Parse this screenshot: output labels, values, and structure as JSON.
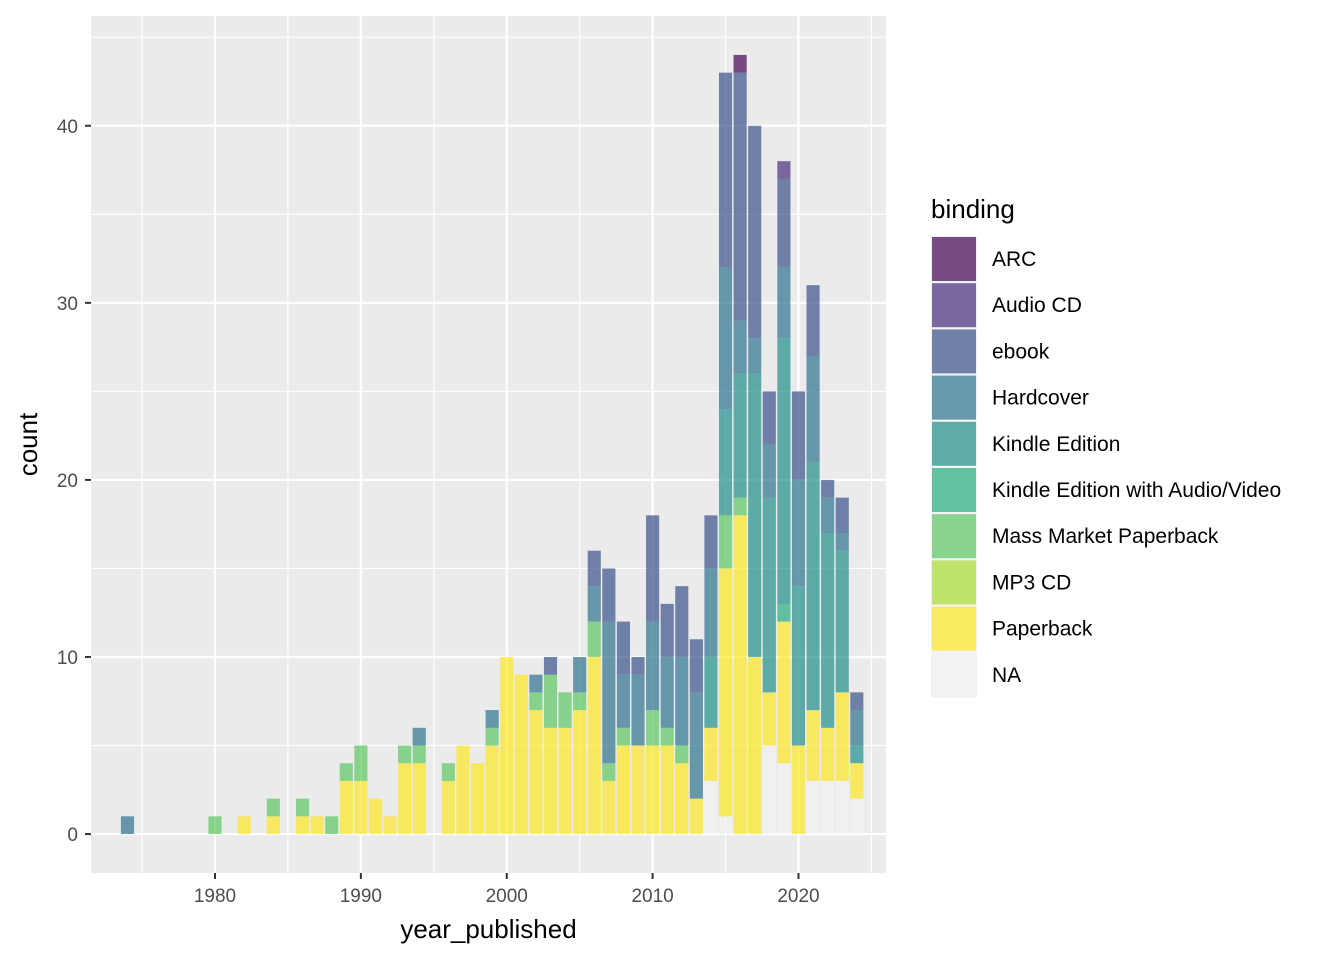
{
  "chart_data": {
    "type": "bar",
    "stacked": true,
    "title": "",
    "xlabel": "year_published",
    "ylabel": "count",
    "xlim": [
      1971.5,
      2026
    ],
    "ylim": [
      -2.2,
      46.2
    ],
    "xticks": [
      1980,
      1990,
      2000,
      2010,
      2020
    ],
    "yticks": [
      0,
      10,
      20,
      30,
      40
    ],
    "grid": true,
    "legend": {
      "title": "binding",
      "position": "right"
    },
    "series": [
      {
        "name": "ARC",
        "color": "#440154",
        "points": [
          [
            2016,
            1
          ]
        ]
      },
      {
        "name": "Audio CD",
        "color": "#472D7B",
        "points": [
          [
            2019,
            1
          ]
        ]
      },
      {
        "name": "ebook",
        "color": "#3B528B",
        "points": [
          [
            2003,
            1
          ],
          [
            2006,
            2
          ],
          [
            2007,
            3
          ],
          [
            2008,
            3
          ],
          [
            2009,
            1
          ],
          [
            2010,
            6
          ],
          [
            2011,
            3
          ],
          [
            2012,
            4
          ],
          [
            2013,
            3
          ],
          [
            2014,
            3
          ],
          [
            2015,
            11
          ],
          [
            2016,
            14
          ],
          [
            2017,
            12
          ],
          [
            2018,
            3
          ],
          [
            2019,
            5
          ],
          [
            2020,
            5
          ],
          [
            2021,
            4
          ],
          [
            2022,
            1
          ],
          [
            2023,
            2
          ],
          [
            2024,
            1
          ]
        ]
      },
      {
        "name": "Hardcover",
        "color": "#2C728E",
        "points": [
          [
            1974,
            1
          ],
          [
            1994,
            1
          ],
          [
            1999,
            1
          ],
          [
            2002,
            1
          ],
          [
            2005,
            2
          ],
          [
            2006,
            2
          ],
          [
            2007,
            8
          ],
          [
            2008,
            3
          ],
          [
            2009,
            4
          ],
          [
            2010,
            5
          ],
          [
            2011,
            4
          ],
          [
            2012,
            5
          ],
          [
            2013,
            6
          ],
          [
            2014,
            5
          ],
          [
            2015,
            8
          ],
          [
            2016,
            3
          ],
          [
            2017,
            2
          ],
          [
            2018,
            3
          ],
          [
            2019,
            4
          ],
          [
            2020,
            6
          ],
          [
            2021,
            6
          ],
          [
            2022,
            2
          ],
          [
            2023,
            1
          ],
          [
            2024,
            2
          ]
        ]
      },
      {
        "name": "Kindle Edition",
        "color": "#21908C",
        "points": [
          [
            2014,
            4
          ],
          [
            2015,
            6
          ],
          [
            2016,
            7
          ],
          [
            2017,
            16
          ],
          [
            2018,
            11
          ],
          [
            2019,
            15
          ],
          [
            2020,
            9
          ],
          [
            2021,
            14
          ],
          [
            2022,
            11
          ],
          [
            2023,
            8
          ],
          [
            2024,
            1
          ]
        ]
      },
      {
        "name": "Kindle Edition with Audio/Video",
        "color": "#27AD81",
        "points": [
          [
            2019,
            1
          ]
        ]
      },
      {
        "name": "Mass Market Paperback",
        "color": "#5DC863",
        "points": [
          [
            1980,
            1
          ],
          [
            1984,
            1
          ],
          [
            1986,
            1
          ],
          [
            1988,
            1
          ],
          [
            1989,
            1
          ],
          [
            1990,
            2
          ],
          [
            1993,
            1
          ],
          [
            1994,
            1
          ],
          [
            1996,
            1
          ],
          [
            1999,
            1
          ],
          [
            2002,
            1
          ],
          [
            2003,
            3
          ],
          [
            2004,
            2
          ],
          [
            2005,
            1
          ],
          [
            2006,
            2
          ],
          [
            2007,
            1
          ],
          [
            2008,
            1
          ],
          [
            2010,
            2
          ],
          [
            2011,
            1
          ],
          [
            2012,
            1
          ],
          [
            2015,
            3
          ],
          [
            2016,
            1
          ]
        ]
      },
      {
        "name": "MP3 CD",
        "color": "#AADC32",
        "points": []
      },
      {
        "name": "Paperback",
        "color": "#FDE725",
        "points": [
          [
            1982,
            1
          ],
          [
            1984,
            1
          ],
          [
            1986,
            1
          ],
          [
            1987,
            1
          ],
          [
            1989,
            3
          ],
          [
            1990,
            3
          ],
          [
            1991,
            2
          ],
          [
            1992,
            1
          ],
          [
            1993,
            4
          ],
          [
            1994,
            4
          ],
          [
            1996,
            3
          ],
          [
            1997,
            5
          ],
          [
            1998,
            4
          ],
          [
            1999,
            5
          ],
          [
            2000,
            10
          ],
          [
            2001,
            9
          ],
          [
            2002,
            7
          ],
          [
            2003,
            6
          ],
          [
            2004,
            6
          ],
          [
            2005,
            7
          ],
          [
            2006,
            10
          ],
          [
            2007,
            3
          ],
          [
            2008,
            5
          ],
          [
            2009,
            5
          ],
          [
            2010,
            5
          ],
          [
            2011,
            5
          ],
          [
            2012,
            4
          ],
          [
            2013,
            2
          ],
          [
            2014,
            3
          ],
          [
            2015,
            14
          ],
          [
            2016,
            18
          ],
          [
            2017,
            10
          ],
          [
            2018,
            3
          ],
          [
            2019,
            8
          ],
          [
            2020,
            5
          ],
          [
            2021,
            4
          ],
          [
            2022,
            3
          ],
          [
            2023,
            5
          ],
          [
            2024,
            2
          ]
        ]
      },
      {
        "name": "NA",
        "color": "#F2F2F2",
        "points": [
          [
            2014,
            3
          ],
          [
            2015,
            1
          ],
          [
            2018,
            5
          ],
          [
            2019,
            4
          ],
          [
            2021,
            3
          ],
          [
            2022,
            3
          ],
          [
            2023,
            3
          ],
          [
            2024,
            2
          ]
        ]
      }
    ]
  }
}
